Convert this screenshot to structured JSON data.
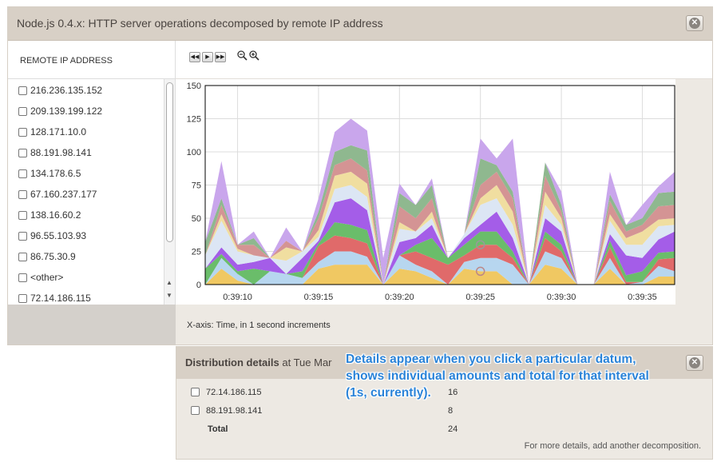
{
  "window": {
    "title": "Node.js 0.4.x: HTTP server operations decomposed by remote IP address"
  },
  "list": {
    "header": "REMOTE IP ADDRESS",
    "items": [
      "216.236.135.152",
      "209.139.199.122",
      "128.171.10.0",
      "88.191.98.141",
      "134.178.6.5",
      "67.160.237.177",
      "138.16.60.2",
      "96.55.103.93",
      "86.75.30.9",
      "<other>",
      "72.14.186.115"
    ]
  },
  "controls": {
    "play_buttons": [
      "◀◀",
      "▶",
      "▶▶"
    ],
    "zoom_out_icon": "zoom-out-icon",
    "zoom_in_icon": "zoom-in-icon"
  },
  "xaxis_note": "X-axis: Time, in 1 second increments",
  "distribution": {
    "title": "Distribution details",
    "subtitle": "at Tue Mar",
    "rows": [
      {
        "label": "72.14.186.115",
        "value": "16"
      },
      {
        "label": "88.191.98.141",
        "value": "8"
      }
    ],
    "total_label": "Total",
    "total_value": "24",
    "footer": "For more details, add another decomposition."
  },
  "tooltip": {
    "lines": [
      "Details appear when you click a particular datum,",
      "shows individual amounts and total for that interval",
      "(1s, currently)."
    ]
  },
  "chart_data": {
    "type": "area",
    "stacked": true,
    "ylim": [
      0,
      150
    ],
    "yticks": [
      "0",
      "25",
      "50",
      "75",
      "100",
      "125",
      "150"
    ],
    "xticks": [
      "0:39:10",
      "0:39:15",
      "0:39:20",
      "0:39:25",
      "0:39:30",
      "0:39:35"
    ],
    "x": [
      0,
      1,
      2,
      3,
      4,
      5,
      6,
      7,
      8,
      9,
      10,
      11,
      12,
      13,
      14,
      15,
      16,
      17,
      18,
      19,
      20,
      21,
      22,
      23,
      24,
      25,
      26,
      27,
      28,
      29
    ],
    "series": [
      {
        "color": "#f0c862",
        "values": [
          0,
          12,
          3,
          0,
          0,
          0,
          0,
          12,
          15,
          15,
          15,
          0,
          12,
          10,
          5,
          0,
          12,
          10,
          10,
          0,
          0,
          15,
          12,
          0,
          0,
          12,
          0,
          0,
          6,
          6
        ]
      },
      {
        "color": "#b7d6ef",
        "values": [
          0,
          8,
          5,
          0,
          10,
          8,
          5,
          5,
          10,
          10,
          6,
          0,
          10,
          5,
          5,
          0,
          5,
          10,
          10,
          15,
          0,
          10,
          8,
          0,
          0,
          8,
          0,
          2,
          8,
          4
        ]
      },
      {
        "color": "#e06a6a",
        "values": [
          0,
          0,
          0,
          0,
          0,
          0,
          0,
          12,
          12,
          10,
          10,
          0,
          0,
          10,
          10,
          15,
          5,
          10,
          10,
          5,
          0,
          10,
          5,
          0,
          0,
          8,
          2,
          0,
          5,
          10
        ]
      },
      {
        "color": "#6abd6a",
        "values": [
          12,
          3,
          2,
          12,
          0,
          0,
          5,
          2,
          10,
          10,
          10,
          0,
          0,
          5,
          15,
          5,
          8,
          10,
          10,
          5,
          0,
          5,
          5,
          0,
          0,
          5,
          5,
          8,
          5,
          5
        ]
      },
      {
        "color": "#a45de8",
        "values": [
          0,
          5,
          5,
          5,
          10,
          0,
          10,
          2,
          15,
          20,
          15,
          0,
          10,
          5,
          10,
          0,
          5,
          5,
          15,
          10,
          0,
          10,
          10,
          0,
          0,
          5,
          15,
          10,
          10,
          15
        ]
      },
      {
        "color": "#dce6f4",
        "values": [
          10,
          20,
          10,
          5,
          0,
          10,
          5,
          3,
          10,
          10,
          10,
          0,
          10,
          5,
          5,
          0,
          3,
          15,
          10,
          10,
          0,
          10,
          5,
          0,
          0,
          10,
          8,
          10,
          10,
          5
        ]
      },
      {
        "color": "#f0dea0",
        "values": [
          0,
          5,
          2,
          0,
          0,
          10,
          0,
          5,
          10,
          10,
          10,
          0,
          5,
          0,
          5,
          0,
          0,
          5,
          10,
          10,
          0,
          10,
          5,
          0,
          0,
          5,
          5,
          10,
          5,
          5
        ]
      },
      {
        "color": "#d49494",
        "values": [
          0,
          7,
          3,
          8,
          0,
          5,
          0,
          9,
          8,
          10,
          10,
          0,
          12,
          10,
          10,
          0,
          0,
          10,
          10,
          10,
          0,
          12,
          5,
          0,
          0,
          10,
          5,
          5,
          10,
          10
        ]
      },
      {
        "color": "#8fb88f",
        "values": [
          10,
          5,
          0,
          5,
          0,
          0,
          0,
          5,
          10,
          10,
          15,
          0,
          10,
          10,
          10,
          0,
          0,
          20,
          5,
          5,
          0,
          10,
          5,
          0,
          0,
          5,
          5,
          5,
          10,
          10
        ]
      },
      {
        "color": "#c9a6ec",
        "values": [
          0,
          28,
          0,
          5,
          0,
          10,
          0,
          10,
          15,
          20,
          15,
          20,
          7,
          0,
          5,
          0,
          0,
          15,
          5,
          40,
          0,
          0,
          10,
          0,
          0,
          17,
          0,
          10,
          5,
          15
        ]
      }
    ]
  }
}
